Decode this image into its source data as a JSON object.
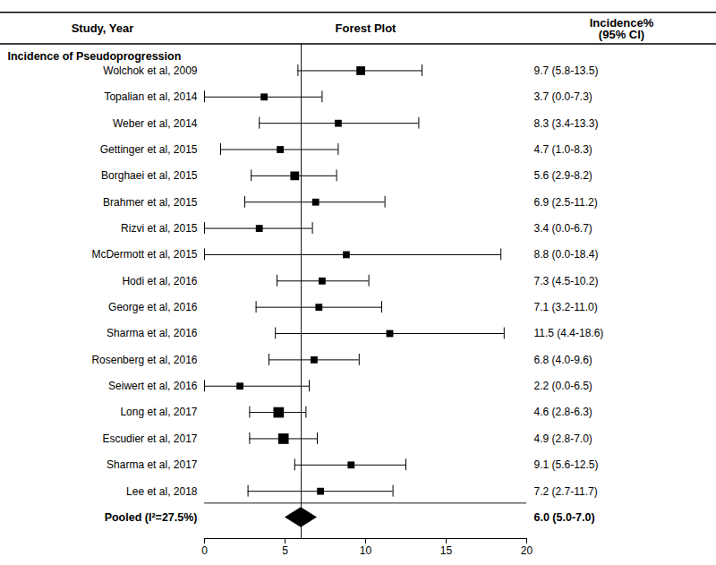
{
  "chart_data": {
    "type": "forest",
    "headers": [
      "Study, Year",
      "Forest Plot",
      "Incidence%\n(95% CI)"
    ],
    "section_label": "Incidence of Pseudoprogression",
    "categories": [
      "Wolchok et al, 2009",
      "Topalian et al, 2014",
      "Weber et al, 2014",
      "Gettinger et al, 2015",
      "Borghaei et al, 2015",
      "Brahmer et al, 2015",
      "Rizvi et al, 2015",
      "McDermott et al, 2015",
      "Hodi et al, 2016",
      "George et al, 2016",
      "Sharma et al, 2016",
      "Rosenberg et al, 2016",
      "Seiwert et al, 2016",
      "Long et al, 2017",
      "Escudier et al, 2017",
      "Sharma et al, 2017",
      "Lee et al, 2018"
    ],
    "values": [
      9.7,
      3.7,
      8.3,
      4.7,
      5.6,
      6.9,
      3.4,
      8.8,
      7.3,
      7.1,
      11.5,
      6.8,
      2.2,
      4.6,
      4.9,
      9.1,
      7.2
    ],
    "lo": [
      5.8,
      0.0,
      3.4,
      1.0,
      2.9,
      2.5,
      0.0,
      0.0,
      4.5,
      3.2,
      4.4,
      4.0,
      0.0,
      2.8,
      2.8,
      5.6,
      2.7
    ],
    "hi": [
      13.5,
      7.3,
      13.3,
      8.3,
      8.2,
      11.2,
      6.7,
      18.4,
      10.2,
      11.0,
      18.6,
      9.6,
      6.5,
      6.3,
      7.0,
      12.5,
      11.7
    ],
    "value_labels": [
      "9.7 (5.8-13.5)",
      "3.7 (0.0-7.3)",
      "8.3 (3.4-13.3)",
      "4.7 (1.0-8.3)",
      "5.6 (2.9-8.2)",
      "6.9 (2.5-11.2)",
      "3.4 (0.0-6.7)",
      "8.8 (0.0-18.4)",
      "7.3 (4.5-10.2)",
      "7.1 (3.2-11.0)",
      "11.5 (4.4-18.6)",
      "6.8 (4.0-9.6)",
      "2.2 (0.0-6.5)",
      "4.6 (2.8-6.3)",
      "4.9 (2.8-7.0)",
      "9.1 (5.6-12.5)",
      "7.2 (2.7-11.7)"
    ],
    "sizes": [
      5,
      4,
      4,
      4,
      5,
      4,
      4,
      4,
      4,
      4,
      4,
      4,
      4,
      6,
      6,
      4,
      4
    ],
    "pooled": {
      "label": "Pooled (I²=27.5%)",
      "value": 6.0,
      "lo": 5.0,
      "hi": 7.0,
      "value_label": "6.0 (5.0-7.0)"
    },
    "reference_line": 6.0,
    "xlim": [
      0,
      20
    ],
    "xticks": [
      0,
      5,
      10,
      15,
      20
    ],
    "grid": false
  }
}
